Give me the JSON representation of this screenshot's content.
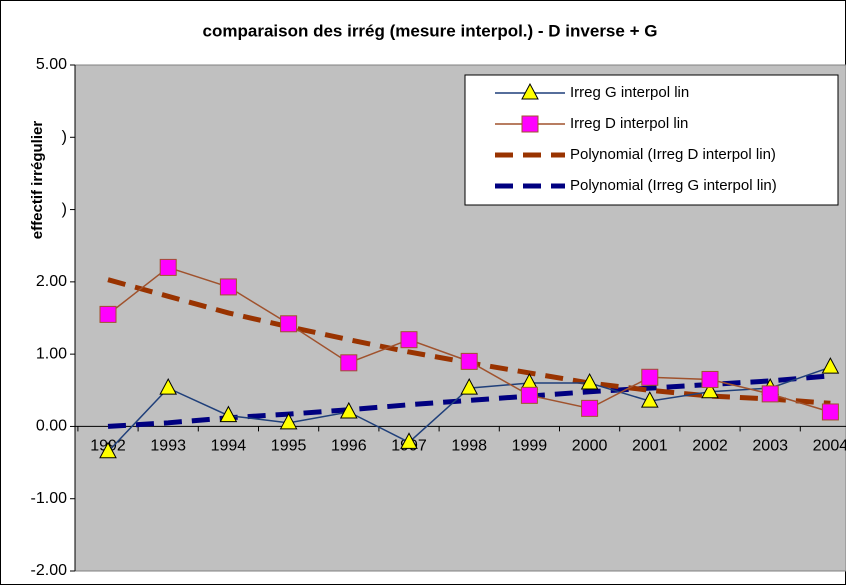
{
  "chart_data": {
    "type": "line",
    "title": "comparaison des irrég (mesure interpol.) - D inverse + G",
    "y_label": "effectif irrégulier",
    "categories": [
      "1992",
      "1993",
      "1994",
      "1995",
      "1996",
      "1997",
      "1998",
      "1999",
      "2000",
      "2001",
      "2002",
      "2003",
      "2004"
    ],
    "series": [
      {
        "name": "Irreg G interpol lin",
        "color": "#1f3f7a",
        "marker": "triangle",
        "marker_fill": "#ffff00",
        "style": "solid",
        "values": [
          -0.35,
          0.53,
          0.15,
          0.05,
          0.2,
          -0.22,
          0.53,
          0.6,
          0.6,
          0.35,
          0.48,
          0.53,
          0.82
        ]
      },
      {
        "name": "Irreg D interpol lin",
        "color": "#a0522d",
        "marker": "square",
        "marker_fill": "#ff00ff",
        "style": "solid",
        "values": [
          1.55,
          2.2,
          1.93,
          1.42,
          0.88,
          1.2,
          0.9,
          0.43,
          0.25,
          0.68,
          0.65,
          0.45,
          0.2
        ]
      },
      {
        "name": "Polynomial (Irreg D interpol lin)",
        "color": "#993300",
        "style": "dashed",
        "values": [
          2.03,
          1.8,
          1.57,
          1.38,
          1.2,
          1.03,
          0.88,
          0.74,
          0.6,
          0.5,
          0.42,
          0.38,
          0.32
        ]
      },
      {
        "name": "Polynomial (Irreg G interpol lin)",
        "color": "#000080",
        "style": "dashed",
        "values": [
          0.0,
          0.05,
          0.12,
          0.17,
          0.23,
          0.3,
          0.36,
          0.42,
          0.48,
          0.53,
          0.58,
          0.63,
          0.7
        ]
      }
    ],
    "ylim": [
      -2,
      5
    ],
    "yticks": [
      {
        "value": -2,
        "label": "-2.00"
      },
      {
        "value": -1,
        "label": "-1.00"
      },
      {
        "value": 0,
        "label": "0.00"
      },
      {
        "value": 1,
        "label": "1.00"
      },
      {
        "value": 2,
        "label": "2.00"
      },
      {
        "value": 3,
        "label": ")"
      },
      {
        "value": 4,
        "label": ")"
      },
      {
        "value": 5,
        "label": "5.00"
      }
    ],
    "plot_background": "#c0c0c0",
    "legend": "top-right"
  }
}
